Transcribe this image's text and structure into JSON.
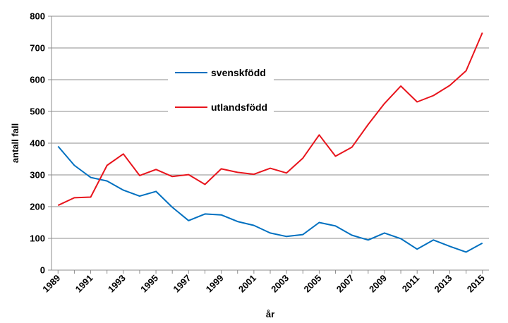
{
  "chart_data": {
    "type": "line",
    "xlabel": "år",
    "ylabel": "antall fall",
    "ylim": [
      0,
      800
    ],
    "yticks": [
      0,
      100,
      200,
      300,
      400,
      500,
      600,
      700,
      800
    ],
    "xticks": [
      "1989",
      "1991",
      "1993",
      "1995",
      "1997",
      "1999",
      "2001",
      "2003",
      "2005",
      "2007",
      "2009",
      "2011",
      "2013",
      "2015"
    ],
    "x": [
      1989,
      1990,
      1991,
      1992,
      1993,
      1994,
      1995,
      1996,
      1997,
      1998,
      1999,
      2000,
      2001,
      2002,
      2003,
      2004,
      2005,
      2006,
      2007,
      2008,
      2009,
      2010,
      2011,
      2012,
      2013,
      2014,
      2015
    ],
    "grid": "horizontal",
    "legend_position": "top-center",
    "series": [
      {
        "name": "svenskfödd",
        "color": "#0070C0",
        "values": [
          390,
          330,
          292,
          281,
          252,
          233,
          248,
          198,
          156,
          177,
          174,
          153,
          141,
          117,
          106,
          112,
          150,
          139,
          110,
          95,
          117,
          99,
          66,
          95,
          75,
          57,
          85
        ]
      },
      {
        "name": "utlandsfödd",
        "color": "#E8141C",
        "values": [
          204,
          228,
          230,
          330,
          366,
          298,
          317,
          295,
          301,
          270,
          319,
          308,
          302,
          321,
          306,
          353,
          426,
          359,
          387,
          459,
          525,
          580,
          530,
          550,
          582,
          628,
          748
        ]
      }
    ]
  }
}
